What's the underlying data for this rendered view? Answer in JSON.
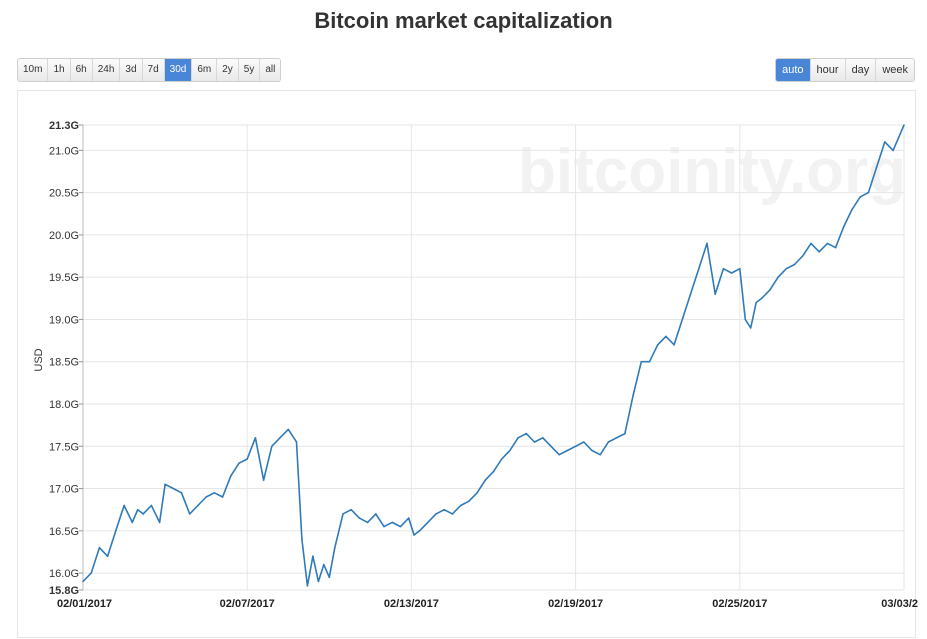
{
  "title": "Bitcoin market capitalization",
  "range_buttons": [
    {
      "label": "10m",
      "active": false
    },
    {
      "label": "1h",
      "active": false
    },
    {
      "label": "6h",
      "active": false
    },
    {
      "label": "24h",
      "active": false
    },
    {
      "label": "3d",
      "active": false
    },
    {
      "label": "7d",
      "active": false
    },
    {
      "label": "30d",
      "active": true
    },
    {
      "label": "6m",
      "active": false
    },
    {
      "label": "2y",
      "active": false
    },
    {
      "label": "5y",
      "active": false
    },
    {
      "label": "all",
      "active": false
    }
  ],
  "resolution_buttons": [
    {
      "label": "auto",
      "active": true
    },
    {
      "label": "hour",
      "active": false
    },
    {
      "label": "day",
      "active": false
    },
    {
      "label": "week",
      "active": false
    }
  ],
  "watermark": "bitcoinity.org",
  "colors": {
    "accent": "#4a86d8",
    "line": "#2f7ab9",
    "grid": "#e6e6e6"
  },
  "chart_data": {
    "type": "line",
    "title": "Bitcoin market capitalization",
    "ylabel": "USD",
    "xlabel": "",
    "ylim": [
      15.8,
      21.3
    ],
    "xlim": [
      0,
      30
    ],
    "grid": true,
    "y_tick_values": [
      15.8,
      16.0,
      16.5,
      17.0,
      17.5,
      18.0,
      18.5,
      19.0,
      19.5,
      20.0,
      20.5,
      21.0,
      21.3
    ],
    "y_tick_labels": [
      "15.8G",
      "16.0G",
      "16.5G",
      "17.0G",
      "17.5G",
      "18.0G",
      "18.5G",
      "19.0G",
      "19.5G",
      "20.0G",
      "20.5G",
      "21.0G",
      "21.3G"
    ],
    "x_tick_values": [
      0,
      6,
      12,
      18,
      24,
      30
    ],
    "x_tick_labels": [
      "02/01/2017",
      "02/07/2017",
      "02/13/2017",
      "02/19/2017",
      "02/25/2017",
      "03/03/2"
    ],
    "x_unit": "days since 02/01/2017",
    "series": [
      {
        "name": "USD",
        "x": [
          0,
          0.3,
          0.6,
          0.9,
          1.2,
          1.5,
          1.8,
          2.0,
          2.2,
          2.5,
          2.8,
          3.0,
          3.3,
          3.6,
          3.9,
          4.2,
          4.5,
          4.8,
          5.1,
          5.4,
          5.7,
          6.0,
          6.3,
          6.6,
          6.9,
          7.2,
          7.5,
          7.8,
          8.0,
          8.2,
          8.4,
          8.6,
          8.8,
          9.0,
          9.2,
          9.5,
          9.8,
          10.1,
          10.4,
          10.7,
          11.0,
          11.3,
          11.6,
          11.9,
          12.1,
          12.3,
          12.6,
          12.9,
          13.2,
          13.5,
          13.8,
          14.1,
          14.4,
          14.7,
          15.0,
          15.3,
          15.6,
          15.9,
          16.2,
          16.5,
          16.8,
          17.1,
          17.4,
          17.7,
          18.0,
          18.3,
          18.6,
          18.9,
          19.2,
          19.5,
          19.8,
          20.1,
          20.4,
          20.7,
          21.0,
          21.3,
          21.6,
          21.9,
          22.2,
          22.5,
          22.8,
          23.1,
          23.4,
          23.7,
          24.0,
          24.2,
          24.4,
          24.6,
          24.8,
          25.1,
          25.4,
          25.7,
          26.0,
          26.3,
          26.6,
          26.9,
          27.2,
          27.5,
          27.8,
          28.1,
          28.4,
          28.7,
          29.0,
          29.3,
          29.6,
          30.0
        ],
        "y": [
          15.9,
          16.0,
          16.3,
          16.2,
          16.5,
          16.8,
          16.6,
          16.75,
          16.7,
          16.8,
          16.6,
          17.05,
          17.0,
          16.95,
          16.7,
          16.8,
          16.9,
          16.95,
          16.9,
          17.15,
          17.3,
          17.35,
          17.6,
          17.1,
          17.5,
          17.6,
          17.7,
          17.55,
          16.4,
          15.85,
          16.2,
          15.9,
          16.1,
          15.95,
          16.3,
          16.7,
          16.75,
          16.65,
          16.6,
          16.7,
          16.55,
          16.6,
          16.55,
          16.65,
          16.45,
          16.5,
          16.6,
          16.7,
          16.75,
          16.7,
          16.8,
          16.85,
          16.95,
          17.1,
          17.2,
          17.35,
          17.45,
          17.6,
          17.65,
          17.55,
          17.6,
          17.5,
          17.4,
          17.45,
          17.5,
          17.55,
          17.45,
          17.4,
          17.55,
          17.6,
          17.65,
          18.1,
          18.5,
          18.5,
          18.7,
          18.8,
          18.7,
          19.0,
          19.3,
          19.6,
          19.9,
          19.3,
          19.6,
          19.55,
          19.6,
          19.0,
          18.9,
          19.2,
          19.25,
          19.35,
          19.5,
          19.6,
          19.65,
          19.75,
          19.9,
          19.8,
          19.9,
          19.85,
          20.1,
          20.3,
          20.45,
          20.5,
          20.8,
          21.1,
          21.0,
          21.3
        ]
      }
    ]
  }
}
